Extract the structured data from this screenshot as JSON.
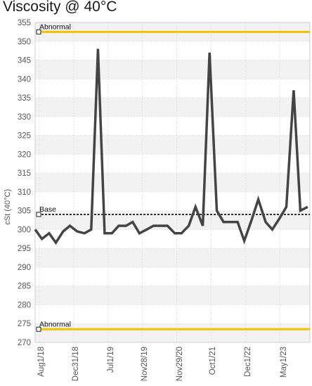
{
  "chart_data": {
    "type": "line",
    "title": "Viscosity @ 40°C",
    "ylabel": "cSt (40°C)",
    "xlabel": "",
    "ylim": [
      270,
      355
    ],
    "y_ticks": [
      355,
      350,
      345,
      340,
      335,
      330,
      325,
      320,
      315,
      310,
      305,
      300,
      295,
      290,
      285,
      280,
      275,
      270
    ],
    "x_tick_labels": [
      "Aug1/18",
      "Dec31/18",
      "Jul1/19",
      "Nov28/19",
      "Nov29/20",
      "Oct1/21",
      "Dec1/22",
      "May1/23"
    ],
    "grid": true,
    "reference_lines": [
      {
        "label": "Abnormal",
        "value": 352.5,
        "color": "#f2c200",
        "style": "solid"
      },
      {
        "label": "Base",
        "value": 304,
        "color": "#333333",
        "style": "dashed"
      },
      {
        "label": "Abnormal",
        "value": 273.5,
        "color": "#f2c200",
        "style": "solid"
      }
    ],
    "series": [
      {
        "color": "#444444",
        "points": [
          [
            0,
            300
          ],
          [
            0.6,
            297.5
          ],
          [
            1.25,
            299
          ],
          [
            1.85,
            296.5
          ],
          [
            2.5,
            299.5
          ],
          [
            3.1,
            301
          ],
          [
            3.75,
            299.5
          ],
          [
            4.4,
            299
          ],
          [
            5.0,
            300
          ],
          [
            5.6,
            348
          ],
          [
            6.2,
            299
          ],
          [
            6.85,
            299
          ],
          [
            7.45,
            301
          ],
          [
            8.1,
            301
          ],
          [
            8.7,
            302
          ],
          [
            9.3,
            299
          ],
          [
            9.95,
            300
          ],
          [
            10.55,
            301
          ],
          [
            11.2,
            301
          ],
          [
            11.8,
            301
          ],
          [
            12.45,
            299
          ],
          [
            13.05,
            299
          ],
          [
            13.7,
            301
          ],
          [
            14.3,
            306
          ],
          [
            14.95,
            301
          ],
          [
            15.55,
            347
          ],
          [
            16.2,
            305
          ],
          [
            16.8,
            302
          ],
          [
            17.4,
            302
          ],
          [
            18.05,
            302
          ],
          [
            18.65,
            297
          ],
          [
            19.3,
            302.5
          ],
          [
            19.9,
            308
          ],
          [
            20.55,
            302
          ],
          [
            21.15,
            300
          ],
          [
            21.8,
            303
          ],
          [
            22.4,
            306
          ],
          [
            23.05,
            337
          ],
          [
            23.65,
            305
          ],
          [
            24.3,
            306
          ]
        ]
      }
    ]
  }
}
